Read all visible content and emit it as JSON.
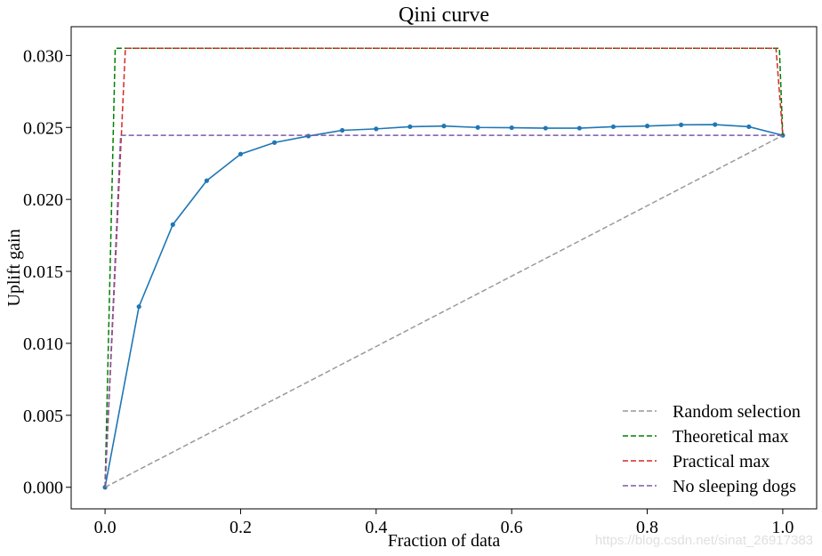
{
  "chart_data": {
    "type": "line",
    "title": "Qini curve",
    "xlabel": "Fraction of data",
    "ylabel": "Uplift gain",
    "xlim": [
      -0.05,
      1.05
    ],
    "ylim": [
      -0.0015,
      0.032
    ],
    "xticks": [
      0.0,
      0.2,
      0.4,
      0.6,
      0.8,
      1.0
    ],
    "xtick_labels": [
      "0.0",
      "0.2",
      "0.4",
      "0.6",
      "0.8",
      "1.0"
    ],
    "yticks": [
      0.0,
      0.005,
      0.01,
      0.015,
      0.02,
      0.025,
      0.03
    ],
    "ytick_labels": [
      "0.000",
      "0.005",
      "0.010",
      "0.015",
      "0.020",
      "0.025",
      "0.030"
    ],
    "grid": false,
    "legend_position": "bottom-right",
    "series": [
      {
        "name": "",
        "style": "solid",
        "markers": true,
        "color": "#1f77b4",
        "x": [
          0.0,
          0.05,
          0.1,
          0.15,
          0.2,
          0.25,
          0.3,
          0.35,
          0.4,
          0.45,
          0.5,
          0.55,
          0.6,
          0.65,
          0.7,
          0.75,
          0.8,
          0.85,
          0.9,
          0.95,
          1.0
        ],
        "y": [
          0.0,
          0.01255,
          0.01825,
          0.0213,
          0.02315,
          0.02395,
          0.0244,
          0.0248,
          0.0249,
          0.02505,
          0.0251,
          0.025,
          0.02498,
          0.02495,
          0.02495,
          0.02505,
          0.0251,
          0.02518,
          0.0252,
          0.02505,
          0.02445
        ]
      },
      {
        "name": "Random selection",
        "style": "dashed",
        "color": "#999999",
        "x": [
          0.0,
          1.0
        ],
        "y": [
          0.0,
          0.02445
        ]
      },
      {
        "name": "Theoretical max",
        "style": "dashed",
        "color": "#007f00",
        "x": [
          0.0,
          0.015,
          0.995,
          1.0
        ],
        "y": [
          0.0,
          0.0305,
          0.0305,
          0.02445
        ]
      },
      {
        "name": "Practical max",
        "style": "dashed",
        "color": "#d62728",
        "x": [
          0.0,
          0.03,
          0.99,
          1.0
        ],
        "y": [
          0.0,
          0.0305,
          0.0305,
          0.02445
        ]
      },
      {
        "name": "No sleeping dogs",
        "style": "dashed",
        "color": "#7b5aa6",
        "x": [
          0.0,
          0.023,
          1.0
        ],
        "y": [
          0.0,
          0.02445,
          0.02445
        ]
      }
    ]
  },
  "watermark": "https://blog.csdn.net/sinat_26917383"
}
